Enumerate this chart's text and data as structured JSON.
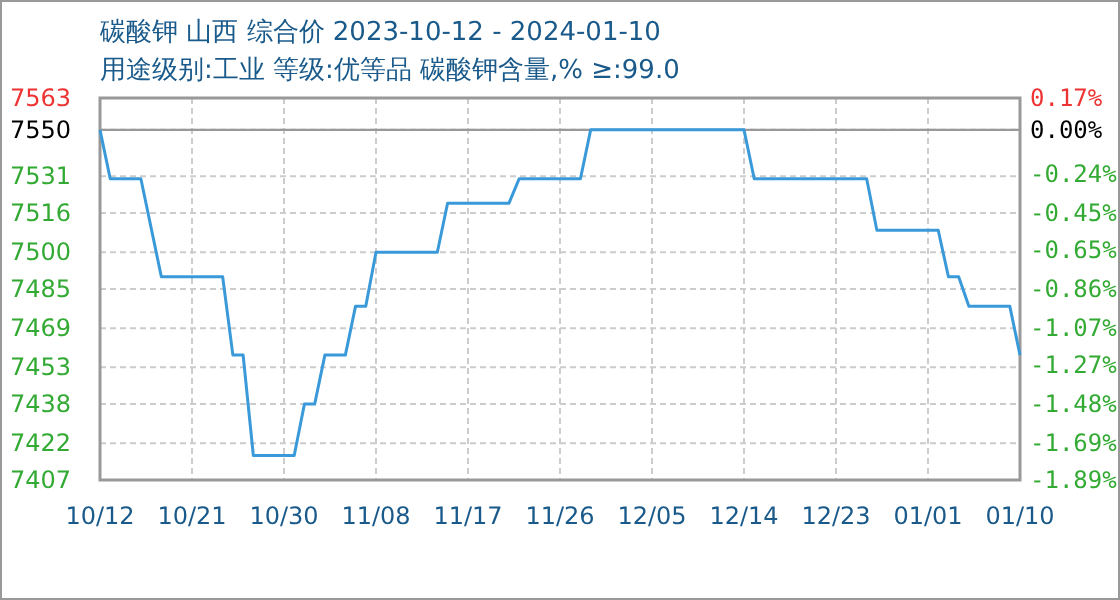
{
  "chart_data": {
    "type": "line",
    "title": "碳酸钾 山西 综合价 2023-10-12 - 2024-01-10",
    "subtitle": "用途级别:工业 等级:优等品 碳酸钾含量,% ≥:99.0",
    "x": [
      "2023-10-12",
      "2023-10-13",
      "2023-10-16",
      "2023-10-18",
      "2023-10-24",
      "2023-10-25",
      "2023-10-26",
      "2023-10-27",
      "2023-10-31",
      "2023-11-01",
      "2023-11-02",
      "2023-11-03",
      "2023-11-05",
      "2023-11-06",
      "2023-11-07",
      "2023-11-08",
      "2023-11-14",
      "2023-11-15",
      "2023-11-21",
      "2023-11-22",
      "2023-11-28",
      "2023-11-29",
      "2023-12-14",
      "2023-12-15",
      "2023-12-26",
      "2023-12-27",
      "2024-01-02",
      "2024-01-03",
      "2024-01-04",
      "2024-01-05",
      "2024-01-09",
      "2024-01-10"
    ],
    "series": [
      {
        "color": "#3a9ad9",
        "values": [
          7550,
          7530,
          7530,
          7490,
          7490,
          7458,
          7458,
          7417,
          7417,
          7438,
          7438,
          7458,
          7458,
          7478,
          7478,
          7500,
          7500,
          7520,
          7520,
          7530,
          7530,
          7550,
          7550,
          7530,
          7530,
          7509,
          7509,
          7490,
          7490,
          7478,
          7478,
          7458
        ]
      }
    ],
    "xlim": [
      "2023-10-12",
      "2024-01-10"
    ],
    "xticks": [
      {
        "value": "2023-10-12",
        "label": "10/12"
      },
      {
        "value": "2023-10-21",
        "label": "10/21"
      },
      {
        "value": "2023-10-30",
        "label": "10/30"
      },
      {
        "value": "2023-11-08",
        "label": "11/08"
      },
      {
        "value": "2023-11-17",
        "label": "11/17"
      },
      {
        "value": "2023-11-26",
        "label": "11/26"
      },
      {
        "value": "2023-12-05",
        "label": "12/05"
      },
      {
        "value": "2023-12-14",
        "label": "12/14"
      },
      {
        "value": "2023-12-23",
        "label": "12/23"
      },
      {
        "value": "2024-01-01",
        "label": "01/01"
      },
      {
        "value": "2024-01-10",
        "label": "01/10"
      }
    ],
    "ylim": [
      7407,
      7563
    ],
    "yticks": [
      7563,
      7550,
      7531,
      7516,
      7500,
      7485,
      7469,
      7453,
      7438,
      7422,
      7407
    ],
    "y2lim": [
      -1.89,
      0.17
    ],
    "y2ticks": [
      {
        "value": 0.17,
        "label": "0.17%"
      },
      {
        "value": 0,
        "label": "0.00%"
      },
      {
        "value": -0.24,
        "label": "-0.24%"
      },
      {
        "value": -0.45,
        "label": "-0.45%"
      },
      {
        "value": -0.65,
        "label": "-0.65%"
      },
      {
        "value": -0.86,
        "label": "-0.86%"
      },
      {
        "value": -1.07,
        "label": "-1.07%"
      },
      {
        "value": -1.27,
        "label": "-1.27%"
      },
      {
        "value": -1.48,
        "label": "-1.48%"
      },
      {
        "value": -1.69,
        "label": "-1.69%"
      },
      {
        "value": -1.89,
        "label": "-1.89%"
      }
    ],
    "ref_lines": [
      {
        "axis": "y",
        "value": 7550,
        "color": "#999999"
      }
    ],
    "grid": true,
    "marker": "none",
    "line_style": "solid"
  }
}
